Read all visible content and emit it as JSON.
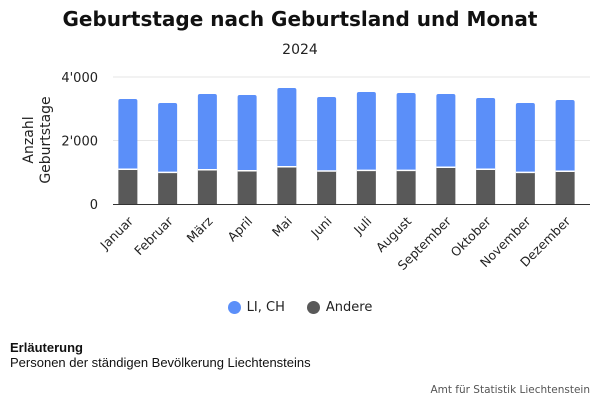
{
  "chart_data": {
    "type": "bar",
    "stacked": true,
    "title": "Geburtstage nach Geburtsland und Monat",
    "subtitle": "2024",
    "xlabel": "",
    "ylabel": "Anzahl Geburtstage",
    "ylabel_lines": [
      "Anzahl",
      "Geburtstage"
    ],
    "ylim": [
      0,
      4000
    ],
    "yticks": [
      0,
      2000,
      4000
    ],
    "ytick_labels": [
      "0",
      "2'000",
      "4'000"
    ],
    "grid": true,
    "legend_position": "bottom",
    "categories": [
      "Januar",
      "Februar",
      "März",
      "April",
      "Mai",
      "Juni",
      "Juli",
      "August",
      "September",
      "Oktober",
      "November",
      "Dezember"
    ],
    "series": [
      {
        "name": "Andere",
        "color": "#595959",
        "values": [
          1093,
          998,
          1080,
          1049,
          1175,
          1039,
          1061,
          1061,
          1156,
          1093,
          998,
          1030
        ]
      },
      {
        "name": "LI, CH",
        "color": "#5b8ff9",
        "values": [
          2214,
          2183,
          2385,
          2384,
          2479,
          2331,
          2467,
          2435,
          2309,
          2246,
          2183,
          2246
        ]
      }
    ]
  },
  "legend": [
    {
      "name": "LI, CH",
      "color": "#5b8ff9"
    },
    {
      "name": "Andere",
      "color": "#595959"
    }
  ],
  "note": {
    "title": "Erläuterung",
    "text": "Personen der ständigen Bevölkerung Liechtensteins"
  },
  "source": "Amt für Statistik Liechtenstein"
}
